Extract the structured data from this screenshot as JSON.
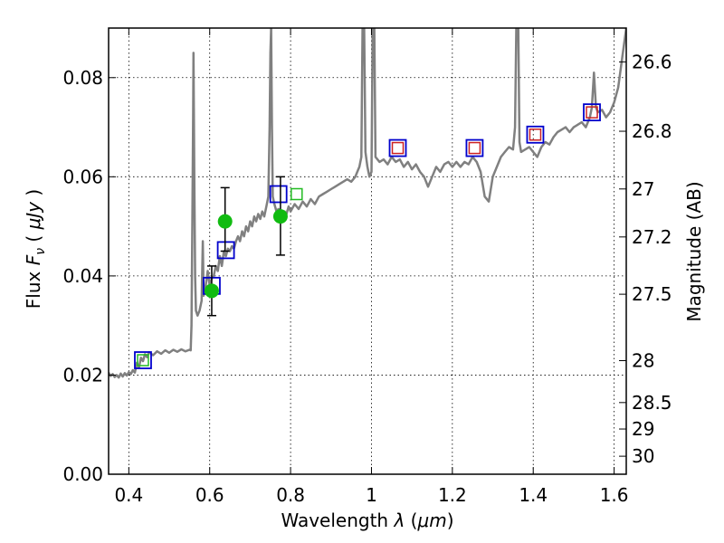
{
  "chart_data": {
    "type": "line",
    "xlabel": "Wavelength  λ (μm)",
    "ylabel": "Flux  F_ν  ( μJy )",
    "ylabel_parts": {
      "prefix": "Flux ",
      "symbol": "F",
      "subscript": "ν",
      "open": "  ( ",
      "unit": "μJy",
      "close": " )"
    },
    "xlabel_parts": {
      "prefix": "Wavelength  ",
      "symbol": "λ",
      "open": " (",
      "unit": "μm",
      "close": ")"
    },
    "y2label": "Magnitude (AB)",
    "xlim": [
      0.35,
      1.63
    ],
    "ylim": [
      0.0,
      0.09
    ],
    "grid": true,
    "x_ticks": [
      {
        "value": 0.4,
        "label": "0.4"
      },
      {
        "value": 0.6,
        "label": "0.6"
      },
      {
        "value": 0.8,
        "label": "0.8"
      },
      {
        "value": 1.0,
        "label": "1"
      },
      {
        "value": 1.2,
        "label": "1.2"
      },
      {
        "value": 1.4,
        "label": "1.4"
      },
      {
        "value": 1.6,
        "label": "1.6"
      }
    ],
    "y_ticks": [
      {
        "value": 0.0,
        "label": "0.00"
      },
      {
        "value": 0.02,
        "label": "0.02"
      },
      {
        "value": 0.04,
        "label": "0.04"
      },
      {
        "value": 0.06,
        "label": "0.06"
      },
      {
        "value": 0.08,
        "label": "0.08"
      }
    ],
    "y2_ticks": [
      {
        "mag": 26.6,
        "label": "26.6"
      },
      {
        "mag": 26.8,
        "label": "26.8"
      },
      {
        "mag": 27.0,
        "label": "27"
      },
      {
        "mag": 27.2,
        "label": "27.2"
      },
      {
        "mag": 27.5,
        "label": "27.5"
      },
      {
        "mag": 28.0,
        "label": "28"
      },
      {
        "mag": 28.5,
        "label": "28.5"
      },
      {
        "mag": 29.0,
        "label": "29"
      },
      {
        "mag": 30.0,
        "label": "30"
      }
    ],
    "colors": {
      "spectrum": "#808080",
      "blue_box": "#0000cc",
      "green_box": "#22bb22",
      "red_box": "#cc2222",
      "observed": "#11bb11",
      "errorbar": "#000000"
    },
    "series": [
      {
        "kind": "spectrum",
        "points": [
          [
            0.35,
            0.0205
          ],
          [
            0.355,
            0.0198
          ],
          [
            0.36,
            0.0202
          ],
          [
            0.365,
            0.0196
          ],
          [
            0.37,
            0.02
          ],
          [
            0.375,
            0.0195
          ],
          [
            0.38,
            0.0203
          ],
          [
            0.385,
            0.0197
          ],
          [
            0.39,
            0.0204
          ],
          [
            0.395,
            0.0199
          ],
          [
            0.4,
            0.0206
          ],
          [
            0.405,
            0.0202
          ],
          [
            0.41,
            0.021
          ],
          [
            0.415,
            0.0205
          ],
          [
            0.42,
            0.0225
          ],
          [
            0.425,
            0.0215
          ],
          [
            0.43,
            0.0235
          ],
          [
            0.435,
            0.0228
          ],
          [
            0.44,
            0.0242
          ],
          [
            0.445,
            0.0236
          ],
          [
            0.45,
            0.0246
          ],
          [
            0.46,
            0.024
          ],
          [
            0.47,
            0.0248
          ],
          [
            0.48,
            0.0243
          ],
          [
            0.49,
            0.025
          ],
          [
            0.5,
            0.0245
          ],
          [
            0.51,
            0.0251
          ],
          [
            0.52,
            0.0247
          ],
          [
            0.53,
            0.0252
          ],
          [
            0.54,
            0.0248
          ],
          [
            0.55,
            0.0251
          ],
          [
            0.553,
            0.025
          ],
          [
            0.555,
            0.03
          ],
          [
            0.557,
            0.05
          ],
          [
            0.559,
            0.072
          ],
          [
            0.56,
            0.085
          ],
          [
            0.562,
            0.06
          ],
          [
            0.564,
            0.04
          ],
          [
            0.566,
            0.033
          ],
          [
            0.57,
            0.032
          ],
          [
            0.575,
            0.033
          ],
          [
            0.58,
            0.035
          ],
          [
            0.583,
            0.047
          ],
          [
            0.585,
            0.036
          ],
          [
            0.59,
            0.038
          ],
          [
            0.595,
            0.041
          ],
          [
            0.6,
            0.038
          ],
          [
            0.605,
            0.0395
          ],
          [
            0.61,
            0.04
          ],
          [
            0.615,
            0.042
          ],
          [
            0.62,
            0.041
          ],
          [
            0.625,
            0.044
          ],
          [
            0.63,
            0.042
          ],
          [
            0.635,
            0.045
          ],
          [
            0.64,
            0.044
          ],
          [
            0.645,
            0.0455
          ],
          [
            0.65,
            0.045
          ],
          [
            0.655,
            0.046
          ],
          [
            0.66,
            0.0455
          ],
          [
            0.665,
            0.047
          ],
          [
            0.67,
            0.048
          ],
          [
            0.675,
            0.047
          ],
          [
            0.68,
            0.049
          ],
          [
            0.685,
            0.048
          ],
          [
            0.69,
            0.05
          ],
          [
            0.695,
            0.049
          ],
          [
            0.7,
            0.051
          ],
          [
            0.705,
            0.05
          ],
          [
            0.71,
            0.052
          ],
          [
            0.715,
            0.051
          ],
          [
            0.72,
            0.0525
          ],
          [
            0.725,
            0.0515
          ],
          [
            0.73,
            0.053
          ],
          [
            0.735,
            0.052
          ],
          [
            0.74,
            0.054
          ],
          [
            0.745,
            0.056
          ],
          [
            0.748,
            0.07
          ],
          [
            0.75,
            0.085
          ],
          [
            0.752,
            0.09
          ],
          [
            0.754,
            0.07
          ],
          [
            0.756,
            0.056
          ],
          [
            0.76,
            0.0545
          ],
          [
            0.765,
            0.053
          ],
          [
            0.77,
            0.0535
          ],
          [
            0.775,
            0.053
          ],
          [
            0.78,
            0.052
          ],
          [
            0.785,
            0.053
          ],
          [
            0.79,
            0.0525
          ],
          [
            0.795,
            0.054
          ],
          [
            0.8,
            0.053
          ],
          [
            0.81,
            0.0545
          ],
          [
            0.82,
            0.0535
          ],
          [
            0.83,
            0.055
          ],
          [
            0.84,
            0.054
          ],
          [
            0.85,
            0.0555
          ],
          [
            0.86,
            0.0545
          ],
          [
            0.87,
            0.056
          ],
          [
            0.88,
            0.0565
          ],
          [
            0.89,
            0.057
          ],
          [
            0.9,
            0.0575
          ],
          [
            0.91,
            0.058
          ],
          [
            0.92,
            0.0585
          ],
          [
            0.93,
            0.059
          ],
          [
            0.94,
            0.0595
          ],
          [
            0.95,
            0.059
          ],
          [
            0.96,
            0.06
          ],
          [
            0.965,
            0.061
          ],
          [
            0.97,
            0.062
          ],
          [
            0.975,
            0.064
          ],
          [
            0.978,
            0.09
          ],
          [
            0.982,
            0.09
          ],
          [
            0.985,
            0.065
          ],
          [
            0.99,
            0.062
          ],
          [
            0.995,
            0.06
          ],
          [
            1.0,
            0.061
          ],
          [
            1.003,
            0.09
          ],
          [
            1.007,
            0.09
          ],
          [
            1.01,
            0.064
          ],
          [
            1.02,
            0.063
          ],
          [
            1.03,
            0.0635
          ],
          [
            1.04,
            0.0625
          ],
          [
            1.05,
            0.064
          ],
          [
            1.06,
            0.063
          ],
          [
            1.07,
            0.0635
          ],
          [
            1.08,
            0.062
          ],
          [
            1.09,
            0.063
          ],
          [
            1.1,
            0.0615
          ],
          [
            1.11,
            0.0625
          ],
          [
            1.12,
            0.061
          ],
          [
            1.13,
            0.06
          ],
          [
            1.14,
            0.058
          ],
          [
            1.15,
            0.06
          ],
          [
            1.16,
            0.062
          ],
          [
            1.17,
            0.061
          ],
          [
            1.18,
            0.0625
          ],
          [
            1.19,
            0.063
          ],
          [
            1.2,
            0.062
          ],
          [
            1.21,
            0.063
          ],
          [
            1.22,
            0.062
          ],
          [
            1.23,
            0.063
          ],
          [
            1.24,
            0.0625
          ],
          [
            1.25,
            0.064
          ],
          [
            1.26,
            0.063
          ],
          [
            1.27,
            0.061
          ],
          [
            1.28,
            0.056
          ],
          [
            1.29,
            0.055
          ],
          [
            1.3,
            0.06
          ],
          [
            1.31,
            0.062
          ],
          [
            1.32,
            0.064
          ],
          [
            1.33,
            0.065
          ],
          [
            1.34,
            0.066
          ],
          [
            1.35,
            0.0655
          ],
          [
            1.355,
            0.07
          ],
          [
            1.358,
            0.09
          ],
          [
            1.363,
            0.09
          ],
          [
            1.366,
            0.067
          ],
          [
            1.37,
            0.065
          ],
          [
            1.38,
            0.0655
          ],
          [
            1.39,
            0.066
          ],
          [
            1.4,
            0.065
          ],
          [
            1.41,
            0.064
          ],
          [
            1.42,
            0.066
          ],
          [
            1.43,
            0.067
          ],
          [
            1.44,
            0.0665
          ],
          [
            1.45,
            0.068
          ],
          [
            1.46,
            0.069
          ],
          [
            1.47,
            0.0695
          ],
          [
            1.48,
            0.07
          ],
          [
            1.49,
            0.069
          ],
          [
            1.5,
            0.07
          ],
          [
            1.51,
            0.0705
          ],
          [
            1.52,
            0.071
          ],
          [
            1.53,
            0.07
          ],
          [
            1.54,
            0.072
          ],
          [
            1.545,
            0.074
          ],
          [
            1.55,
            0.081
          ],
          [
            1.555,
            0.074
          ],
          [
            1.56,
            0.073
          ],
          [
            1.57,
            0.0735
          ],
          [
            1.58,
            0.072
          ],
          [
            1.59,
            0.073
          ],
          [
            1.6,
            0.075
          ],
          [
            1.61,
            0.078
          ],
          [
            1.62,
            0.084
          ],
          [
            1.63,
            0.09
          ]
        ]
      },
      {
        "kind": "blue-box",
        "points": [
          [
            0.435,
            0.023
          ],
          [
            0.605,
            0.038
          ],
          [
            0.64,
            0.0452
          ],
          [
            0.77,
            0.0565
          ],
          [
            1.065,
            0.0658
          ],
          [
            1.255,
            0.0658
          ],
          [
            1.405,
            0.0685
          ],
          [
            1.545,
            0.073
          ]
        ]
      },
      {
        "kind": "green-box",
        "points": [
          [
            0.435,
            0.023
          ],
          [
            0.815,
            0.0565
          ]
        ]
      },
      {
        "kind": "red-box",
        "points": [
          [
            1.065,
            0.0658
          ],
          [
            1.255,
            0.0658
          ],
          [
            1.405,
            0.0685
          ],
          [
            1.545,
            0.073
          ]
        ]
      },
      {
        "kind": "observed",
        "points": [
          {
            "x": 0.605,
            "y": 0.037,
            "lo": 0.032,
            "hi": 0.042
          },
          {
            "x": 0.638,
            "y": 0.051,
            "lo": 0.045,
            "hi": 0.0578
          },
          {
            "x": 0.775,
            "y": 0.052,
            "lo": 0.0442,
            "hi": 0.06
          }
        ]
      }
    ]
  }
}
